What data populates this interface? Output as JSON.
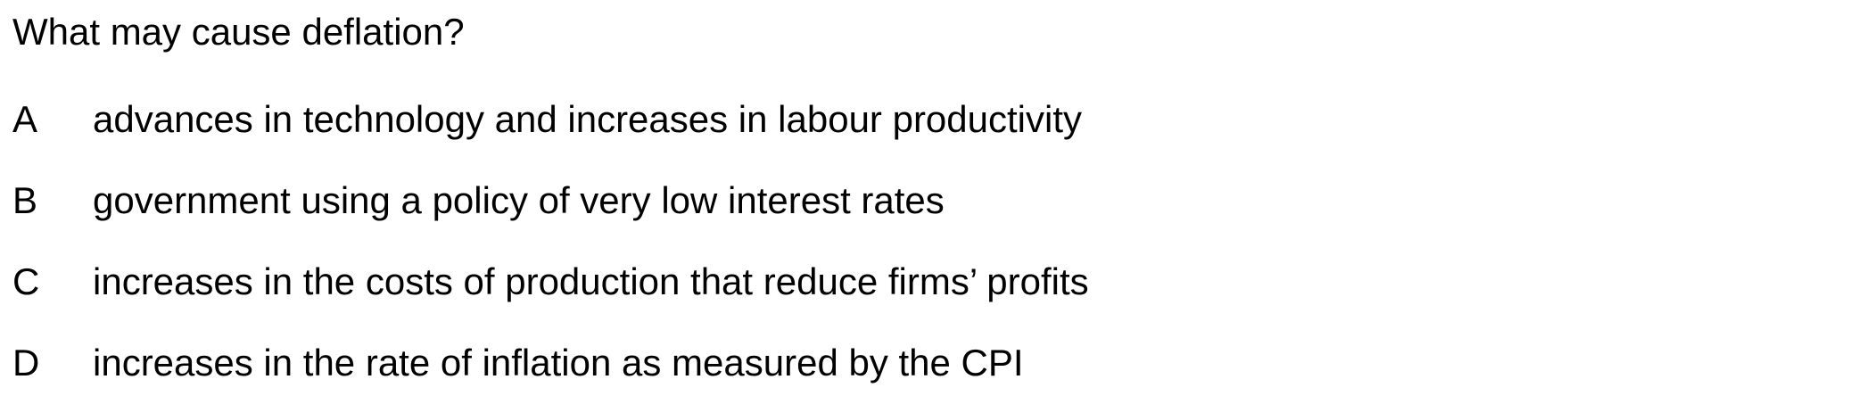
{
  "question": "What may cause deflation?",
  "options": [
    {
      "letter": "A",
      "text": "advances in technology and increases in labour productivity"
    },
    {
      "letter": "B",
      "text": "government using a policy of very low interest rates"
    },
    {
      "letter": "C",
      "text": "increases in the costs of production that reduce firms’ profits"
    },
    {
      "letter": "D",
      "text": "increases in the rate of inflation as measured by the CPI"
    }
  ]
}
